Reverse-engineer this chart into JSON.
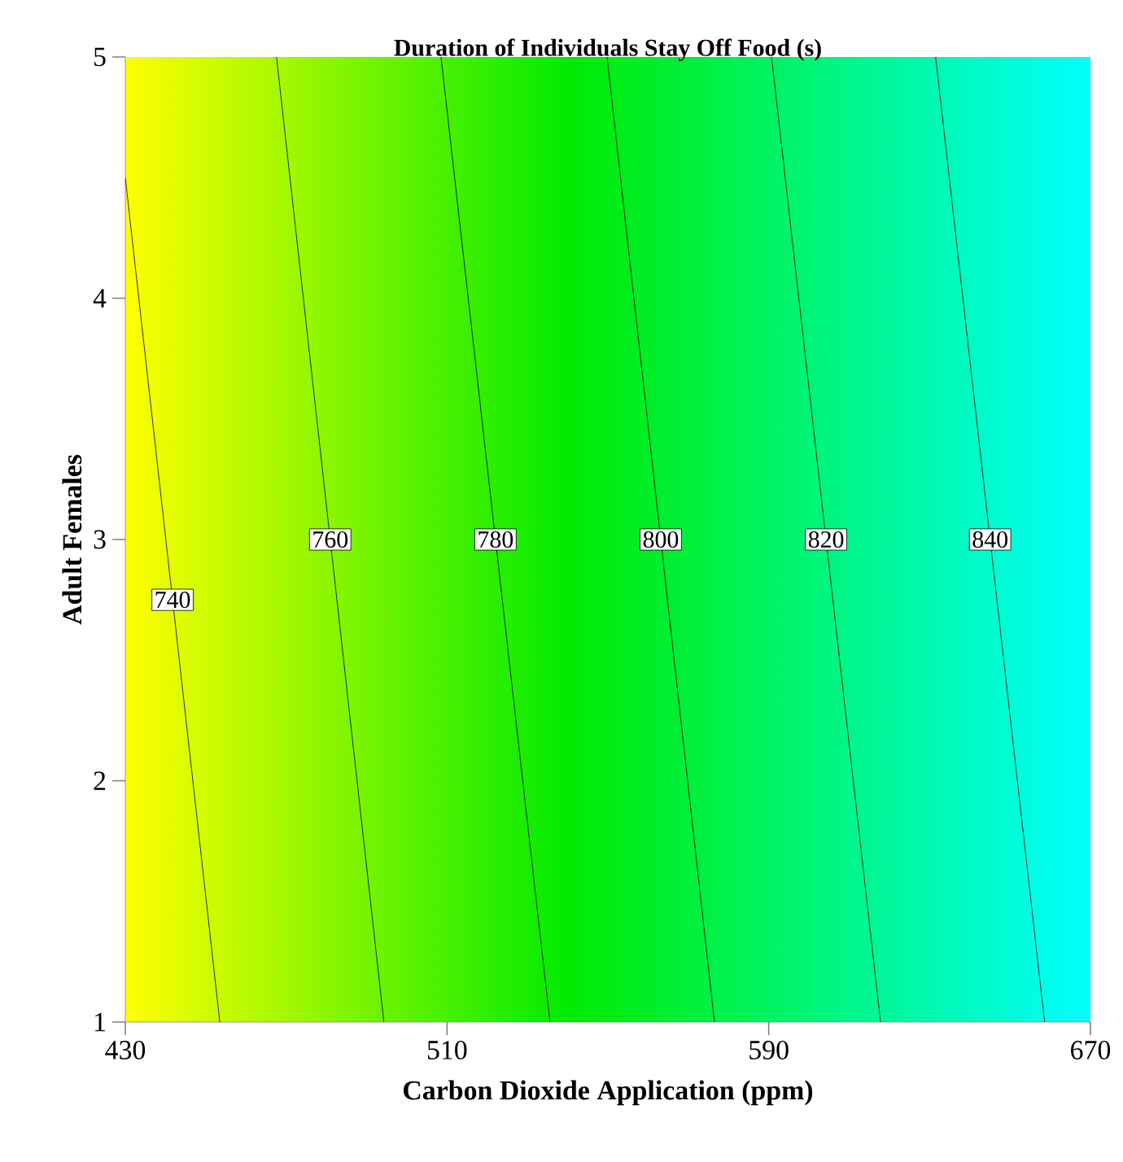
{
  "chart_data": {
    "type": "line",
    "title": "Duration of Individuals Stay Off Food (s)",
    "xlabel": "Carbon Dioxide Application (ppm)",
    "ylabel": "Adult Females",
    "xlim": [
      430,
      670
    ],
    "ylim": [
      1,
      5
    ],
    "xticks": [
      430,
      510,
      590,
      670
    ],
    "yticks": [
      1,
      2,
      3,
      4,
      5
    ],
    "marker": "none",
    "line_style": "solid",
    "series": [
      {
        "name": "740",
        "color": "#000000",
        "x": [
          430,
          453.5
        ],
        "values": [
          4.5,
          1
        ]
      },
      {
        "name": "760",
        "color": "#000000",
        "x": [
          467.6,
          494.3
        ],
        "values": [
          5,
          1
        ]
      },
      {
        "name": "780",
        "color": "#000000",
        "x": [
          508.5,
          535.6
        ],
        "values": [
          5,
          1
        ]
      },
      {
        "name": "800",
        "color": "#000000",
        "x": [
          549.8,
          576.5
        ],
        "values": [
          5,
          1
        ]
      },
      {
        "name": "820",
        "color": "#000000",
        "x": [
          590.7,
          617.8
        ],
        "values": [
          5,
          1
        ]
      },
      {
        "name": "840",
        "color": "#000000",
        "x": [
          631.5,
          658.6
        ],
        "values": [
          5,
          1
        ]
      }
    ]
  }
}
